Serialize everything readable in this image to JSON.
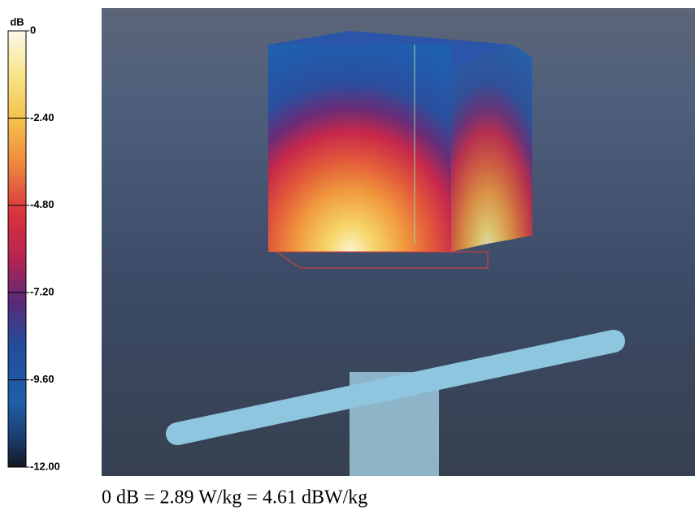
{
  "colorbar": {
    "unit": "dB",
    "range": [
      -12,
      0
    ],
    "ticks": [
      0,
      {
        "value": -2.4,
        "label": "-2.40"
      },
      {
        "value": -4.8,
        "label": "-4.80"
      },
      {
        "value": -7.2,
        "label": "-7.20"
      },
      {
        "value": -9.6,
        "label": "-9.60"
      },
      {
        "value": -12,
        "label": "-12.00"
      }
    ]
  },
  "caption": "0 dB = 2.89 W/kg = 4.61 dBW/kg"
}
